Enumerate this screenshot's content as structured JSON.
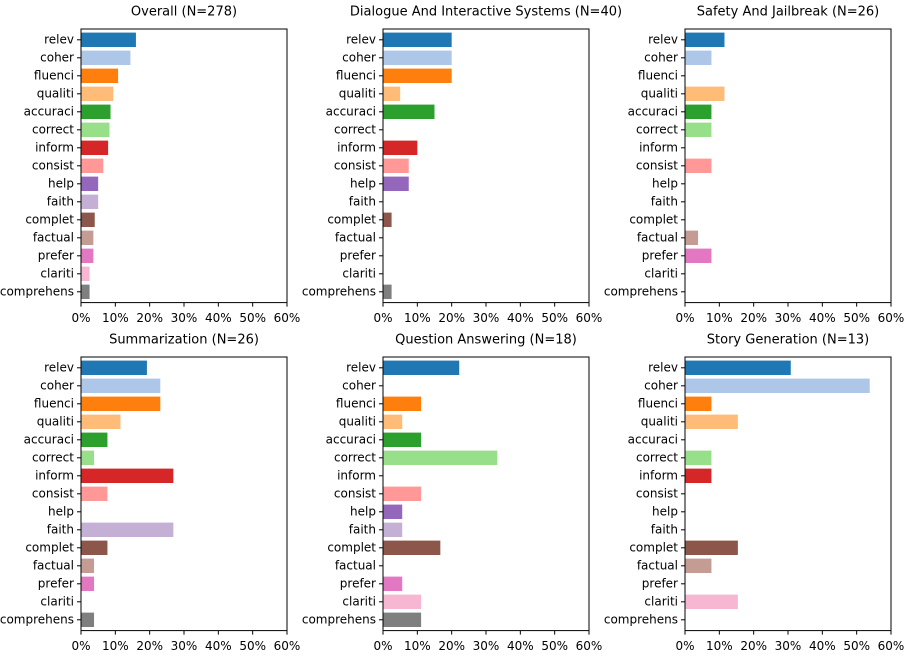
{
  "chart_data": [
    {
      "type": "bar",
      "orientation": "horizontal",
      "title": "Overall (N=278)",
      "categories": [
        "relev",
        "coher",
        "fluenci",
        "qualiti",
        "accuraci",
        "correct",
        "inform",
        "consist",
        "help",
        "faith",
        "complet",
        "factual",
        "prefer",
        "clariti",
        "comprehens"
      ],
      "values": [
        16.0,
        14.4,
        10.8,
        9.4,
        8.6,
        8.3,
        7.9,
        6.5,
        5.0,
        5.0,
        4.0,
        3.6,
        3.6,
        2.5,
        2.5
      ],
      "colors": [
        "#1f77b4",
        "#aec7e8",
        "#ff7f0e",
        "#ffbb78",
        "#2ca02c",
        "#98df8a",
        "#d62728",
        "#ff9896",
        "#9467bd",
        "#c5b0d5",
        "#8c564b",
        "#c49c94",
        "#e377c2",
        "#f7b6d2",
        "#7f7f7f"
      ],
      "xlim": [
        0,
        60
      ],
      "xticks": [
        {
          "value": 0,
          "label": "0%"
        },
        {
          "value": 10,
          "label": "10%"
        },
        {
          "value": 20,
          "label": "20%"
        },
        {
          "value": 30,
          "label": "30%"
        },
        {
          "value": 40,
          "label": "40%"
        },
        {
          "value": 50,
          "label": "50%"
        },
        {
          "value": 60,
          "label": "60%"
        }
      ]
    },
    {
      "type": "bar",
      "orientation": "horizontal",
      "title": "Dialogue And Interactive Systems (N=40)",
      "categories": [
        "relev",
        "coher",
        "fluenci",
        "qualiti",
        "accuraci",
        "correct",
        "inform",
        "consist",
        "help",
        "faith",
        "complet",
        "factual",
        "prefer",
        "clariti",
        "comprehens"
      ],
      "values": [
        20.0,
        20.0,
        20.0,
        5.0,
        15.0,
        0,
        10.0,
        7.5,
        7.5,
        0,
        2.5,
        0,
        0,
        0,
        2.5
      ],
      "colors": [
        "#1f77b4",
        "#aec7e8",
        "#ff7f0e",
        "#ffbb78",
        "#2ca02c",
        "#98df8a",
        "#d62728",
        "#ff9896",
        "#9467bd",
        "#c5b0d5",
        "#8c564b",
        "#c49c94",
        "#e377c2",
        "#f7b6d2",
        "#7f7f7f"
      ],
      "xlim": [
        0,
        60
      ],
      "xticks": [
        {
          "value": 0,
          "label": "0%"
        },
        {
          "value": 10,
          "label": "10%"
        },
        {
          "value": 20,
          "label": "20%"
        },
        {
          "value": 30,
          "label": "30%"
        },
        {
          "value": 40,
          "label": "40%"
        },
        {
          "value": 50,
          "label": "50%"
        },
        {
          "value": 60,
          "label": "60%"
        }
      ]
    },
    {
      "type": "bar",
      "orientation": "horizontal",
      "title": "Safety And Jailbreak (N=26)",
      "categories": [
        "relev",
        "coher",
        "fluenci",
        "qualiti",
        "accuraci",
        "correct",
        "inform",
        "consist",
        "help",
        "faith",
        "complet",
        "factual",
        "prefer",
        "clariti",
        "comprehens"
      ],
      "values": [
        11.5,
        7.7,
        0,
        11.5,
        7.7,
        7.7,
        0,
        7.7,
        0,
        0,
        0,
        3.8,
        7.7,
        0,
        0
      ],
      "colors": [
        "#1f77b4",
        "#aec7e8",
        "#ff7f0e",
        "#ffbb78",
        "#2ca02c",
        "#98df8a",
        "#d62728",
        "#ff9896",
        "#9467bd",
        "#c5b0d5",
        "#8c564b",
        "#c49c94",
        "#e377c2",
        "#f7b6d2",
        "#7f7f7f"
      ],
      "xlim": [
        0,
        60
      ],
      "xticks": [
        {
          "value": 0,
          "label": "0%"
        },
        {
          "value": 10,
          "label": "10%"
        },
        {
          "value": 20,
          "label": "20%"
        },
        {
          "value": 30,
          "label": "30%"
        },
        {
          "value": 40,
          "label": "40%"
        },
        {
          "value": 50,
          "label": "50%"
        },
        {
          "value": 60,
          "label": "60%"
        }
      ]
    },
    {
      "type": "bar",
      "orientation": "horizontal",
      "title": "Summarization (N=26)",
      "categories": [
        "relev",
        "coher",
        "fluenci",
        "qualiti",
        "accuraci",
        "correct",
        "inform",
        "consist",
        "help",
        "faith",
        "complet",
        "factual",
        "prefer",
        "clariti",
        "comprehens"
      ],
      "values": [
        19.2,
        23.1,
        23.1,
        11.5,
        7.7,
        3.8,
        26.9,
        7.7,
        0,
        26.9,
        7.7,
        3.8,
        3.8,
        0,
        3.8
      ],
      "colors": [
        "#1f77b4",
        "#aec7e8",
        "#ff7f0e",
        "#ffbb78",
        "#2ca02c",
        "#98df8a",
        "#d62728",
        "#ff9896",
        "#9467bd",
        "#c5b0d5",
        "#8c564b",
        "#c49c94",
        "#e377c2",
        "#f7b6d2",
        "#7f7f7f"
      ],
      "xlim": [
        0,
        60
      ],
      "xticks": [
        {
          "value": 0,
          "label": "0%"
        },
        {
          "value": 10,
          "label": "10%"
        },
        {
          "value": 20,
          "label": "20%"
        },
        {
          "value": 30,
          "label": "30%"
        },
        {
          "value": 40,
          "label": "40%"
        },
        {
          "value": 50,
          "label": "50%"
        },
        {
          "value": 60,
          "label": "60%"
        }
      ]
    },
    {
      "type": "bar",
      "orientation": "horizontal",
      "title": "Question Answering (N=18)",
      "categories": [
        "relev",
        "coher",
        "fluenci",
        "qualiti",
        "accuraci",
        "correct",
        "inform",
        "consist",
        "help",
        "faith",
        "complet",
        "factual",
        "prefer",
        "clariti",
        "comprehens"
      ],
      "values": [
        22.2,
        0,
        11.1,
        5.6,
        11.1,
        33.3,
        0,
        11.1,
        5.6,
        5.6,
        16.7,
        0,
        5.6,
        11.1,
        11.1
      ],
      "colors": [
        "#1f77b4",
        "#aec7e8",
        "#ff7f0e",
        "#ffbb78",
        "#2ca02c",
        "#98df8a",
        "#d62728",
        "#ff9896",
        "#9467bd",
        "#c5b0d5",
        "#8c564b",
        "#c49c94",
        "#e377c2",
        "#f7b6d2",
        "#7f7f7f"
      ],
      "xlim": [
        0,
        60
      ],
      "xticks": [
        {
          "value": 0,
          "label": "0%"
        },
        {
          "value": 10,
          "label": "10%"
        },
        {
          "value": 20,
          "label": "20%"
        },
        {
          "value": 30,
          "label": "30%"
        },
        {
          "value": 40,
          "label": "40%"
        },
        {
          "value": 50,
          "label": "50%"
        },
        {
          "value": 60,
          "label": "60%"
        }
      ]
    },
    {
      "type": "bar",
      "orientation": "horizontal",
      "title": "Story Generation (N=13)",
      "categories": [
        "relev",
        "coher",
        "fluenci",
        "qualiti",
        "accuraci",
        "correct",
        "inform",
        "consist",
        "help",
        "faith",
        "complet",
        "factual",
        "prefer",
        "clariti",
        "comprehens"
      ],
      "values": [
        30.8,
        53.8,
        7.7,
        15.4,
        0,
        7.7,
        7.7,
        0,
        0,
        0,
        15.4,
        7.7,
        0,
        15.4,
        0
      ],
      "colors": [
        "#1f77b4",
        "#aec7e8",
        "#ff7f0e",
        "#ffbb78",
        "#2ca02c",
        "#98df8a",
        "#d62728",
        "#ff9896",
        "#9467bd",
        "#c5b0d5",
        "#8c564b",
        "#c49c94",
        "#e377c2",
        "#f7b6d2",
        "#7f7f7f"
      ],
      "xlim": [
        0,
        60
      ],
      "xticks": [
        {
          "value": 0,
          "label": "0%"
        },
        {
          "value": 10,
          "label": "10%"
        },
        {
          "value": 20,
          "label": "20%"
        },
        {
          "value": 30,
          "label": "30%"
        },
        {
          "value": 40,
          "label": "40%"
        },
        {
          "value": 50,
          "label": "50%"
        },
        {
          "value": 60,
          "label": "60%"
        }
      ]
    }
  ]
}
